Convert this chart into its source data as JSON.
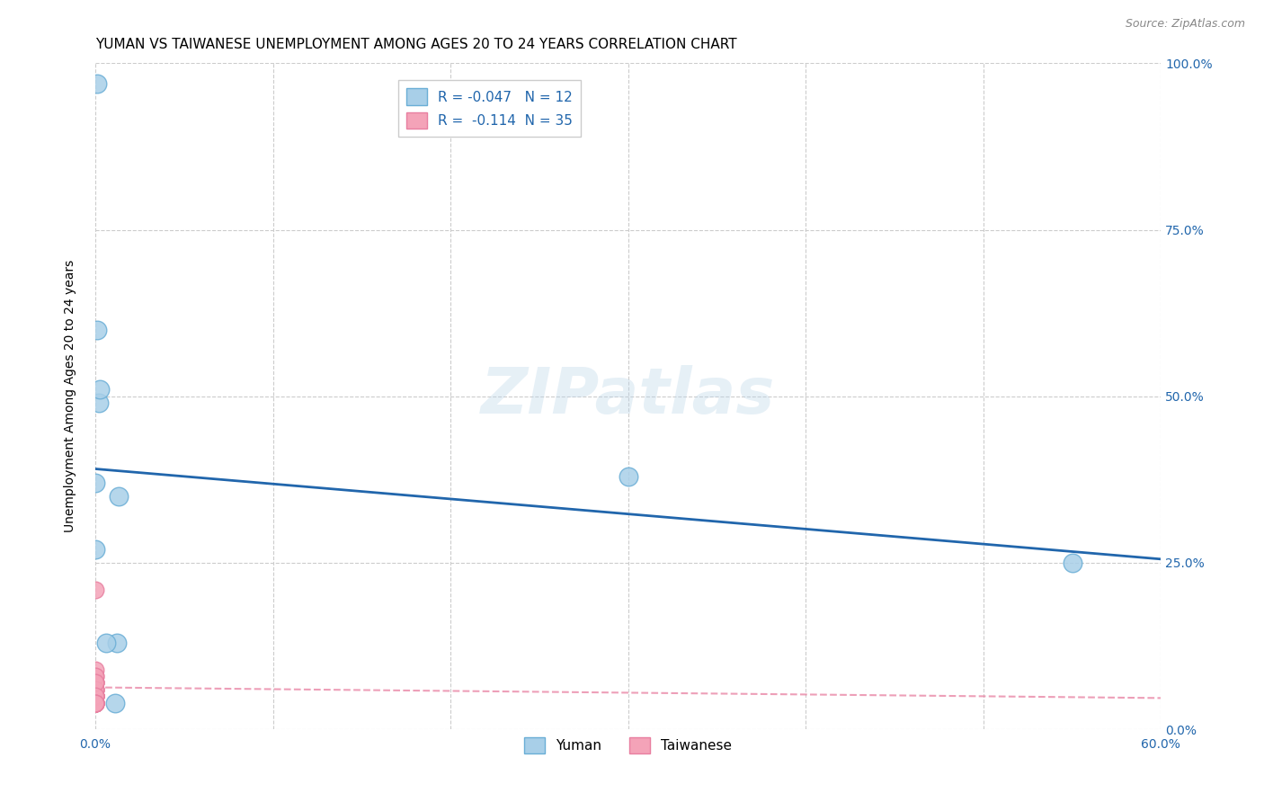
{
  "title": "YUMAN VS TAIWANESE UNEMPLOYMENT AMONG AGES 20 TO 24 YEARS CORRELATION CHART",
  "source": "Source: ZipAtlas.com",
  "ylabel": "Unemployment Among Ages 20 to 24 years",
  "xlim": [
    0.0,
    0.6
  ],
  "ylim": [
    0.0,
    1.0
  ],
  "xticks": [
    0.0,
    0.1,
    0.2,
    0.3,
    0.4,
    0.5,
    0.6
  ],
  "xtick_labels": [
    "0.0%",
    "",
    "",
    "",
    "",
    "",
    "60.0%"
  ],
  "ytick_labels": [
    "0.0%",
    "25.0%",
    "50.0%",
    "75.0%",
    "100.0%"
  ],
  "yticks": [
    0.0,
    0.25,
    0.5,
    0.75,
    1.0
  ],
  "yuman_x": [
    0.001,
    0.002,
    0.0025,
    0.001,
    0.0,
    0.0,
    0.012,
    0.011,
    0.013,
    0.3,
    0.55,
    0.006
  ],
  "yuman_y": [
    0.97,
    0.49,
    0.51,
    0.6,
    0.37,
    0.27,
    0.13,
    0.04,
    0.35,
    0.38,
    0.25,
    0.13
  ],
  "taiwanese_x": [
    0.0,
    0.0,
    0.0,
    0.0,
    0.0,
    0.0,
    0.0,
    0.0,
    0.0,
    0.0,
    0.0,
    0.0,
    0.0,
    0.0,
    0.0,
    0.0,
    0.0,
    0.0,
    0.0,
    0.0,
    0.0,
    0.0,
    0.0,
    0.0,
    0.0,
    0.0,
    0.0,
    0.0,
    0.0,
    0.0,
    0.0,
    0.0,
    0.0,
    0.0,
    0.0
  ],
  "taiwanese_y": [
    0.21,
    0.04,
    0.04,
    0.07,
    0.05,
    0.06,
    0.08,
    0.09,
    0.04,
    0.05,
    0.07,
    0.04,
    0.05,
    0.04,
    0.05,
    0.04,
    0.06,
    0.07,
    0.05,
    0.04,
    0.06,
    0.08,
    0.05,
    0.04,
    0.04,
    0.05,
    0.04,
    0.04,
    0.04,
    0.06,
    0.07,
    0.04,
    0.05,
    0.04,
    0.04
  ],
  "yuman_color": "#a8cfe8",
  "taiwanese_color": "#f4a3b8",
  "yuman_edge": "#6aaed6",
  "taiwanese_edge": "#e87fa0",
  "trendline_yuman_color": "#2166ac",
  "trendline_taiwanese_color": "#e87fa0",
  "trendline_yuman_start_y": 0.375,
  "trendline_yuman_end_y": 0.345,
  "trendline_taiwanese_start_y": 0.063,
  "trendline_taiwanese_end_y": 0.047,
  "R_yuman": -0.047,
  "N_yuman": 12,
  "R_taiwanese": -0.114,
  "N_taiwanese": 35,
  "background_color": "#ffffff",
  "grid_color": "#cccccc",
  "title_fontsize": 11,
  "axis_label_fontsize": 10,
  "tick_fontsize": 10,
  "legend_fontsize": 11
}
